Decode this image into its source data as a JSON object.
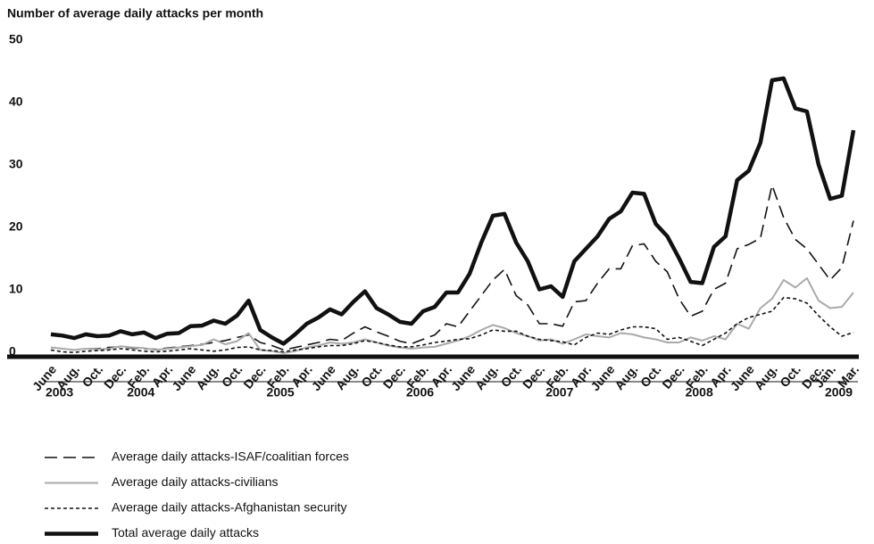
{
  "chart_data": {
    "type": "line",
    "title": "Number of average daily attacks per month",
    "categories": [
      "June",
      null,
      "Aug.",
      null,
      "Oct.",
      null,
      "Dec.",
      null,
      "Feb.",
      null,
      "Apr.",
      null,
      "June",
      null,
      "Aug.",
      null,
      "Oct.",
      null,
      "Dec.",
      null,
      "Feb.",
      null,
      "Apr.",
      null,
      "June",
      null,
      "Aug.",
      null,
      "Oct.",
      null,
      "Dec.",
      null,
      "Feb.",
      null,
      "Apr.",
      null,
      "June",
      null,
      "Aug.",
      null,
      "Oct.",
      null,
      "Dec.",
      null,
      "Feb.",
      null,
      "Apr.",
      null,
      "June",
      null,
      "Aug.",
      null,
      "Oct.",
      null,
      "Dec.",
      null,
      "Feb.",
      null,
      "Apr.",
      null,
      "June",
      null,
      "Aug.",
      null,
      "Oct.",
      null,
      "Dec.",
      "Jan.",
      null,
      "Mar."
    ],
    "years": [
      "2003",
      "2004",
      "2005",
      "2006",
      "2007",
      "2008",
      "2009"
    ],
    "ylim": [
      0,
      50
    ],
    "yticks": [
      0,
      10,
      20,
      30,
      40,
      50
    ],
    "grid": false,
    "series": [
      {
        "name": "Average daily attacks-ISAF/coalitian forces",
        "color": "#111111",
        "style": "dashed",
        "values": [
          1.2,
          1,
          0.8,
          1,
          1,
          1.2,
          1.3,
          1.1,
          1,
          0.9,
          1.1,
          1.3,
          1.5,
          1.7,
          2,
          2.3,
          2.8,
          3.2,
          2,
          1.5,
          0.8,
          1.2,
          1.6,
          2,
          2.5,
          2.3,
          3.5,
          4.5,
          3.7,
          3,
          2.2,
          1.8,
          2.5,
          3.2,
          5,
          4.5,
          7,
          9.5,
          12,
          13.7,
          9.5,
          8,
          5,
          5,
          4.6,
          8.5,
          8.7,
          11.5,
          13.8,
          13.8,
          17.5,
          17.8,
          15,
          13.3,
          9,
          6.2,
          7,
          10.5,
          11.5,
          17,
          17.7,
          18.7,
          27.2,
          22,
          18.5,
          17,
          14.5,
          12,
          14,
          21.5
        ]
      },
      {
        "name": "Average daily attacks-civilians",
        "color": "#aaaaaa",
        "style": "solid",
        "values": [
          1.2,
          1,
          0.8,
          1,
          0.9,
          1,
          1.4,
          1.2,
          1.1,
          0.8,
          1,
          1.2,
          1.4,
          1.6,
          2.5,
          1.7,
          2.2,
          3.5,
          0.8,
          0.6,
          0.3,
          0.6,
          1.2,
          1.5,
          2,
          1.8,
          2,
          2.5,
          2,
          1.5,
          1.2,
          1,
          1.2,
          1.3,
          1.8,
          2.3,
          3,
          4,
          4.8,
          4.3,
          3.5,
          3,
          2.3,
          2.5,
          1.8,
          2.5,
          3.3,
          3,
          2.8,
          3.5,
          3.3,
          2.8,
          2.5,
          2,
          2,
          2.8,
          2.3,
          3,
          2.5,
          5,
          4.2,
          7.5,
          9,
          12,
          10.8,
          12.3,
          8.7,
          7.5,
          7.7,
          10
        ]
      },
      {
        "name": "Average daily attacks-Afghanistan security",
        "color": "#111111",
        "style": "dotted",
        "values": [
          0.8,
          0.5,
          0.4,
          0.6,
          0.7,
          0.8,
          1,
          0.8,
          0.6,
          0.5,
          0.6,
          0.8,
          1,
          0.8,
          0.6,
          0.8,
          1.2,
          1.3,
          0.8,
          0.7,
          0.5,
          0.8,
          1,
          1.3,
          1.5,
          1.5,
          1.8,
          2.3,
          2,
          1.6,
          1.3,
          1.3,
          1.6,
          2,
          2.2,
          2.5,
          2.6,
          3.2,
          4,
          3.8,
          3.8,
          3,
          2.5,
          2.3,
          2.1,
          1.6,
          2.8,
          3.5,
          3.3,
          4,
          4.5,
          4.5,
          4.2,
          2.5,
          2.8,
          2.2,
          1.5,
          2.5,
          3.5,
          5,
          6,
          6.5,
          7,
          9.2,
          9,
          8.3,
          6.3,
          4.5,
          3,
          3.6
        ]
      },
      {
        "name": "Total average daily attacks",
        "color": "#111111",
        "style": "thick",
        "values": [
          3.3,
          3.1,
          2.7,
          3.3,
          3,
          3.1,
          3.8,
          3.3,
          3.6,
          2.7,
          3.4,
          3.5,
          4.6,
          4.7,
          5.5,
          5,
          6.3,
          8.7,
          4,
          2.8,
          1.8,
          3.3,
          5,
          6,
          7.3,
          6.5,
          8.5,
          10.2,
          7.5,
          6.5,
          5.3,
          5,
          7,
          7.7,
          10,
          10,
          13,
          18,
          22.3,
          22.6,
          18,
          15,
          10.5,
          11,
          9.3,
          15,
          17,
          19,
          21.8,
          23,
          26,
          25.8,
          21,
          19,
          15.5,
          11.7,
          11.5,
          17.3,
          19,
          28,
          29.5,
          34,
          44,
          44.3,
          39.5,
          39,
          30.5,
          25,
          25.5,
          36
        ]
      }
    ]
  }
}
